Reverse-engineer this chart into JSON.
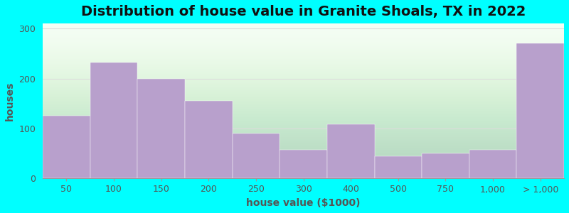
{
  "title": "Distribution of house value in Granite Shoals, TX in 2022",
  "xlabel": "house value ($1000)",
  "ylabel": "houses",
  "bar_labels": [
    "50",
    "100",
    "150",
    "200",
    "250",
    "300",
    "400",
    "500",
    "750",
    "1,000",
    "> 1,000"
  ],
  "bar_values": [
    125,
    232,
    200,
    155,
    90,
    57,
    108,
    45,
    50,
    57,
    270
  ],
  "bar_color": "#b8a0cc",
  "background_color": "#00ffff",
  "ylim": [
    0,
    310
  ],
  "yticks": [
    0,
    100,
    200,
    300
  ],
  "title_fontsize": 14,
  "axis_fontsize": 10,
  "tick_fontsize": 9,
  "grid_color": "#dddddd",
  "plot_bg_top": "#e8f5e8",
  "plot_bg_bottom": "#f5fff5"
}
